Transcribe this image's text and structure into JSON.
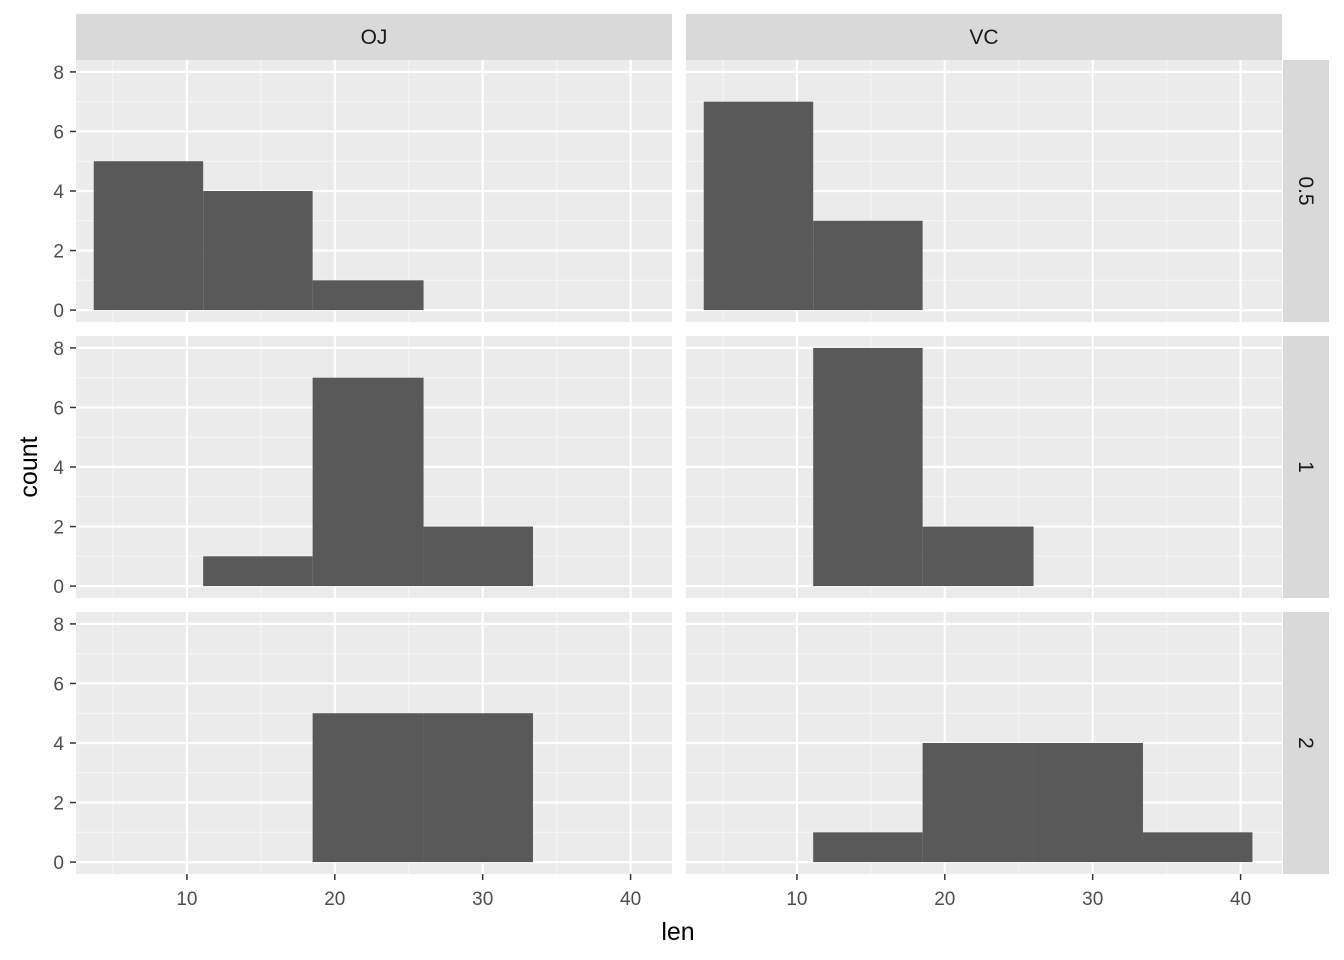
{
  "chart_data": {
    "type": "bar",
    "subtype": "faceted-histogram",
    "xlabel": "len",
    "ylabel": "count",
    "xlim": [
      2.5,
      42.8
    ],
    "ylim": [
      -0.4,
      8.4
    ],
    "x_ticks": [
      "10",
      "20",
      "30",
      "40"
    ],
    "x_tick_values": [
      10,
      20,
      30,
      40
    ],
    "y_ticks": [
      "0",
      "2",
      "4",
      "6",
      "8"
    ],
    "y_tick_values": [
      0,
      2,
      4,
      6,
      8
    ],
    "bin_edges": [
      3.7,
      11.1,
      18.5,
      26.0,
      33.4,
      40.8
    ],
    "bar_color": "#595959",
    "panel_background": "#ebebeb",
    "strip_background": "#d9d9d9",
    "grid": true,
    "facet_columns": [
      "OJ",
      "VC"
    ],
    "facet_rows": [
      "0.5",
      "1",
      "2"
    ],
    "panels": [
      {
        "column": "OJ",
        "row": "0.5",
        "counts": [
          5,
          4,
          1,
          0,
          0
        ]
      },
      {
        "column": "VC",
        "row": "0.5",
        "counts": [
          7,
          3,
          0,
          0,
          0
        ]
      },
      {
        "column": "OJ",
        "row": "1",
        "counts": [
          0,
          1,
          7,
          2,
          0
        ]
      },
      {
        "column": "VC",
        "row": "1",
        "counts": [
          0,
          8,
          2,
          0,
          0
        ]
      },
      {
        "column": "OJ",
        "row": "2",
        "counts": [
          0,
          0,
          5,
          5,
          0
        ]
      },
      {
        "column": "VC",
        "row": "2",
        "counts": [
          0,
          1,
          4,
          4,
          1
        ]
      }
    ]
  }
}
